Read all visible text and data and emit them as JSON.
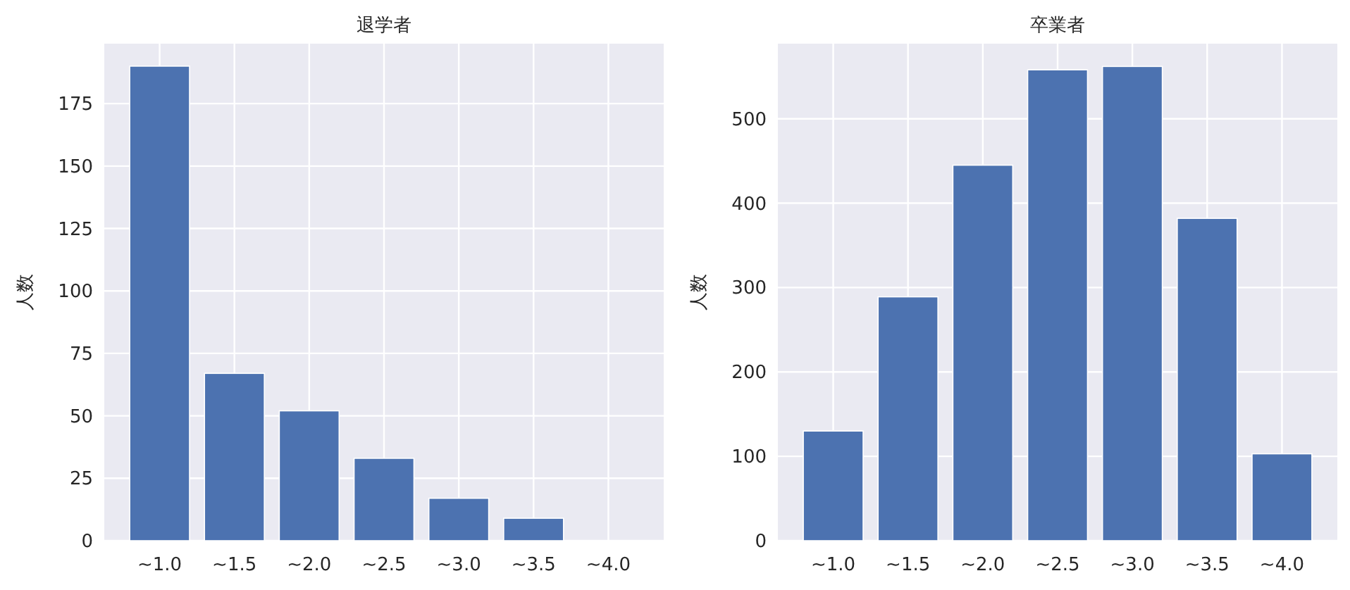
{
  "chart_data": [
    {
      "type": "bar",
      "title": "退学者",
      "ylabel": "人数",
      "categories": [
        "~1.0",
        "~1.5",
        "~2.0",
        "~2.5",
        "~3.0",
        "~3.5",
        "~4.0"
      ],
      "values": [
        190,
        67,
        52,
        33,
        17,
        9,
        0
      ],
      "color": "#4c72b0",
      "ylim": [
        0,
        199
      ],
      "yticks": [
        0,
        25,
        50,
        75,
        100,
        125,
        150,
        175
      ],
      "grid": true
    },
    {
      "type": "bar",
      "title": "卒業者",
      "ylabel": "人数",
      "categories": [
        "~1.0",
        "~1.5",
        "~2.0",
        "~2.5",
        "~3.0",
        "~3.5",
        "~4.0"
      ],
      "values": [
        130,
        289,
        445,
        558,
        562,
        382,
        103
      ],
      "color": "#4c72b0",
      "ylim": [
        0,
        589
      ],
      "yticks": [
        0,
        100,
        200,
        300,
        400,
        500
      ],
      "grid": true
    }
  ]
}
